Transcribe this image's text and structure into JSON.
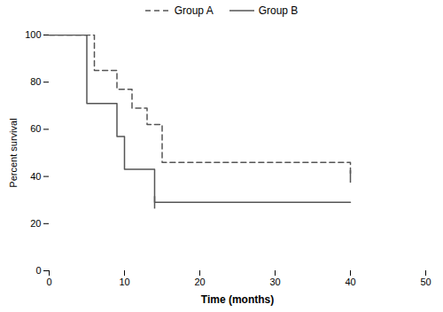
{
  "chart_data": {
    "type": "step",
    "xlabel": "Time (months)",
    "ylabel": "Percent survival",
    "series": [
      {
        "name": "Group A",
        "color": "#555555",
        "line_style": "dashed",
        "x": [
          0,
          5,
          6,
          8,
          9,
          11,
          13,
          15,
          26,
          40
        ],
        "values": [
          100,
          100,
          85,
          85,
          77,
          69,
          62,
          46,
          46,
          40
        ],
        "censored_x": [
          40
        ],
        "censored_values": [
          40
        ]
      },
      {
        "name": "Group B",
        "color": "#555555",
        "line_style": "solid",
        "x": [
          0,
          5,
          7,
          9,
          10,
          11,
          14,
          40
        ],
        "values": [
          100,
          71,
          71,
          57,
          43,
          43,
          29,
          29
        ],
        "censored_x": [
          14
        ],
        "censored_values": [
          29
        ]
      }
    ],
    "xlim": [
      0,
      50
    ],
    "ylim": [
      0,
      100
    ],
    "xticks": [
      0,
      10,
      20,
      30,
      40,
      50
    ],
    "yticks": [
      0,
      20,
      40,
      60,
      80,
      100
    ],
    "grid": false,
    "legend": "top"
  }
}
